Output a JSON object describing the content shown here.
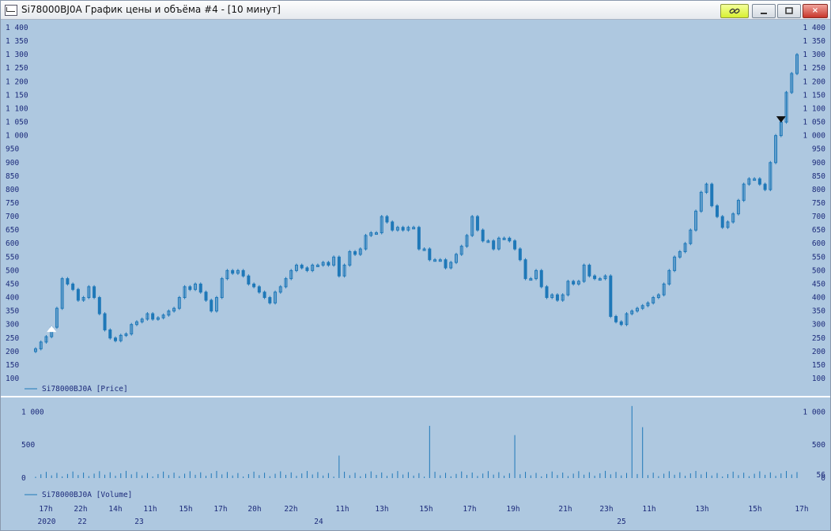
{
  "window": {
    "title": "Si78000BJ0A График цены и объёма #4 - [10 минут]",
    "buttons": {
      "close": "×"
    }
  },
  "colors": {
    "background": "#aec8e0",
    "candle": "#1f78b8",
    "axis_text": "#1c2a7a",
    "separator": "#ffffff"
  },
  "icons": [
    "chart-window-icon",
    "link-icon",
    "minimize-icon",
    "maximize-icon",
    "close-icon",
    "buy-arrow-icon",
    "sell-arrow-icon"
  ],
  "chart_data": [
    {
      "type": "candlestick",
      "legend": "Si78000BJ0A [Price]",
      "y_ticks": [
        "100",
        "150",
        "200",
        "250",
        "300",
        "350",
        "400",
        "450",
        "500",
        "550",
        "600",
        "650",
        "700",
        "750",
        "800",
        "850",
        "900",
        "950",
        "1 000",
        "1 050",
        "1 100",
        "1 150",
        "1 200",
        "1 250",
        "1 300",
        "1 350",
        "1 400"
      ],
      "ylim": [
        100,
        1400
      ],
      "close_series": [
        210,
        235,
        255,
        290,
        360,
        470,
        450,
        430,
        390,
        400,
        440,
        400,
        340,
        280,
        250,
        240,
        260,
        265,
        300,
        310,
        320,
        340,
        320,
        325,
        335,
        350,
        360,
        400,
        440,
        430,
        450,
        420,
        390,
        350,
        400,
        470,
        500,
        490,
        500,
        480,
        450,
        440,
        420,
        400,
        380,
        420,
        440,
        470,
        500,
        520,
        510,
        500,
        520,
        520,
        530,
        520,
        550,
        480,
        520,
        570,
        560,
        580,
        630,
        640,
        640,
        700,
        680,
        650,
        660,
        650,
        660,
        660,
        580,
        580,
        540,
        540,
        540,
        510,
        530,
        560,
        590,
        630,
        700,
        650,
        610,
        610,
        580,
        620,
        620,
        610,
        580,
        540,
        470,
        470,
        500,
        440,
        400,
        410,
        390,
        410,
        460,
        450,
        460,
        520,
        480,
        470,
        470,
        480,
        330,
        310,
        300,
        340,
        350,
        360,
        370,
        380,
        400,
        410,
        450,
        500,
        550,
        570,
        600,
        650,
        720,
        790,
        820,
        740,
        700,
        660,
        680,
        710,
        760,
        820,
        840,
        840,
        820,
        800,
        900,
        1000,
        1050,
        1160,
        1230,
        1300
      ],
      "signals": [
        {
          "label": "buy",
          "price": 290
        },
        {
          "label": "sell",
          "price": 1060
        }
      ]
    },
    {
      "type": "bar",
      "legend": "Si78000BJ0A [Volume]",
      "y_ticks": [
        "0",
        "500",
        "1 000"
      ],
      "ylim": [
        0,
        1100
      ],
      "last_value": "56",
      "spikes": [
        {
          "label": "24 ~11h",
          "value": 340
        },
        {
          "label": "24 ~15h",
          "value": 790
        },
        {
          "label": "24 ~19h",
          "value": 650
        },
        {
          "label": "25 ~00h",
          "value": 1090
        },
        {
          "label": "25 ~00h b",
          "value": 770
        }
      ]
    }
  ],
  "time_axis": {
    "hours": [
      "17h",
      "22h",
      "14h",
      "11h",
      "15h",
      "17h",
      "20h",
      "22h",
      "11h",
      "13h",
      "15h",
      "17h",
      "19h",
      "21h",
      "23h",
      "11h",
      "13h",
      "15h",
      "17h"
    ],
    "dates": [
      "2020",
      "22",
      "23",
      "24",
      "25"
    ]
  }
}
